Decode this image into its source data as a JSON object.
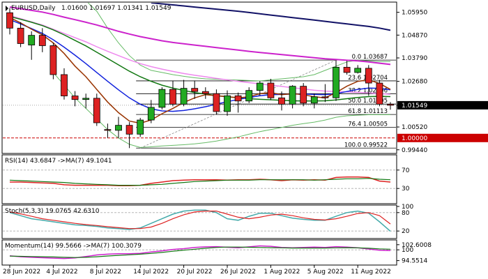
{
  "symbol_title": "EURUSD,Daily",
  "ohlc_text": "1.01600 1.01697 1.01341 1.01549",
  "last_price": "1.01549",
  "parity_label": "1.00000",
  "colors": {
    "bull": "#22aa22",
    "bear": "#dd2222",
    "ma_blue": "#1122dd",
    "ma_green": "#117711",
    "ma_brown": "#993300",
    "ma_magenta": "#cc22cc",
    "ma_pink": "#ee88ee",
    "ma_navy": "#111166",
    "bb": "#66bb66",
    "fib": "#000000",
    "rsi": "#dd2222",
    "rsi_ma": "#117711",
    "stoch": "#44aaaa",
    "stoch_sig": "#dd2222",
    "mom": "#cc22cc",
    "mom_ma": "#117711",
    "parity": "#cc0000"
  },
  "chart_data": [
    {
      "type": "candlestick",
      "title": "EURUSD,Daily",
      "ylim": [
        0.993,
        1.064
      ],
      "y_ticks": [
        "1.05950",
        "1.04870",
        "1.03790",
        "1.02680",
        "1.01549",
        "1.00520",
        "0.99440"
      ],
      "x_ticks": [
        "28 Jun 2022",
        "4 Jul 2022",
        "8 Jul 2022",
        "14 Jul 2022",
        "20 Jul 2022",
        "26 Jul 2022",
        "1 Aug 2022",
        "5 Aug 2022",
        "11 Aug 2022"
      ],
      "x_tick_index": [
        0,
        4,
        8,
        12,
        16,
        20,
        24,
        28,
        32
      ],
      "candles": [
        {
          "o": 1.0593,
          "h": 1.0615,
          "l": 1.049,
          "c": 1.052
        },
        {
          "o": 1.052,
          "h": 1.0548,
          "l": 1.043,
          "c": 1.0447
        },
        {
          "o": 1.044,
          "h": 1.0505,
          "l": 1.037,
          "c": 1.0486
        },
        {
          "o": 1.0486,
          "h": 1.052,
          "l": 1.0406,
          "c": 1.0437
        },
        {
          "o": 1.0437,
          "h": 1.045,
          "l": 1.0278,
          "c": 1.03
        },
        {
          "o": 1.03,
          "h": 1.033,
          "l": 1.0182,
          "c": 1.0199
        },
        {
          "o": 1.0199,
          "h": 1.0222,
          "l": 1.015,
          "c": 1.0182
        },
        {
          "o": 1.0182,
          "h": 1.021,
          "l": 1.014,
          "c": 1.0188
        },
        {
          "o": 1.0188,
          "h": 1.021,
          "l": 1.0057,
          "c": 1.0072
        },
        {
          "o": 1.004,
          "h": 1.0068,
          "l": 1.0,
          "c": 1.0036
        },
        {
          "o": 1.0036,
          "h": 1.01,
          "l": 1.0,
          "c": 1.006
        },
        {
          "o": 1.006,
          "h": 1.0075,
          "l": 0.9952,
          "c": 1.0018
        },
        {
          "o": 1.0018,
          "h": 1.0095,
          "l": 1.0005,
          "c": 1.0085
        },
        {
          "o": 1.0085,
          "h": 1.018,
          "l": 1.007,
          "c": 1.0145
        },
        {
          "o": 1.0145,
          "h": 1.024,
          "l": 1.0135,
          "c": 1.023
        },
        {
          "o": 1.023,
          "h": 1.027,
          "l": 1.015,
          "c": 1.016
        },
        {
          "o": 1.016,
          "h": 1.0275,
          "l": 1.015,
          "c": 1.0235
        },
        {
          "o": 1.0235,
          "h": 1.0272,
          "l": 1.0185,
          "c": 1.022
        },
        {
          "o": 1.022,
          "h": 1.024,
          "l": 1.0185,
          "c": 1.021
        },
        {
          "o": 1.021,
          "h": 1.023,
          "l": 1.011,
          "c": 1.0125
        },
        {
          "o": 1.0125,
          "h": 1.0225,
          "l": 1.0105,
          "c": 1.02
        },
        {
          "o": 1.02,
          "h": 1.0215,
          "l": 1.012,
          "c": 1.0175
        },
        {
          "o": 1.0175,
          "h": 1.024,
          "l": 1.0165,
          "c": 1.0225
        },
        {
          "o": 1.0225,
          "h": 1.027,
          "l": 1.02,
          "c": 1.026
        },
        {
          "o": 1.026,
          "h": 1.028,
          "l": 1.018,
          "c": 1.019
        },
        {
          "o": 1.019,
          "h": 1.022,
          "l": 1.013,
          "c": 1.016
        },
        {
          "o": 1.016,
          "h": 1.025,
          "l": 1.014,
          "c": 1.0245
        },
        {
          "o": 1.0245,
          "h": 1.026,
          "l": 1.015,
          "c": 1.0165
        },
        {
          "o": 1.0165,
          "h": 1.021,
          "l": 1.014,
          "c": 1.0195
        },
        {
          "o": 1.0195,
          "h": 1.0255,
          "l": 1.017,
          "c": 1.019
        },
        {
          "o": 1.019,
          "h": 1.0368,
          "l": 1.0175,
          "c": 1.0335
        },
        {
          "o": 1.0335,
          "h": 1.0365,
          "l": 1.03,
          "c": 1.031
        },
        {
          "o": 1.031,
          "h": 1.0345,
          "l": 1.0305,
          "c": 1.033
        },
        {
          "o": 1.033,
          "h": 1.0345,
          "l": 1.02,
          "c": 1.026
        },
        {
          "o": 1.026,
          "h": 1.0275,
          "l": 1.015,
          "c": 1.016
        },
        {
          "o": 1.016,
          "h": 1.017,
          "l": 1.0134,
          "c": 1.0155
        }
      ],
      "moving_averages": [
        {
          "color_key": "ma_navy",
          "values": [
            null,
            null,
            null,
            null,
            null,
            null,
            null,
            null,
            null,
            null,
            null,
            null,
            null,
            1.064,
            1.0635,
            1.063,
            1.0625,
            1.062,
            1.0615,
            1.061,
            1.0605,
            1.06,
            1.0594,
            1.0588,
            1.0582,
            1.0576,
            1.057,
            1.0564,
            1.0558,
            1.0552,
            1.0546,
            1.054,
            1.0534,
            1.0528,
            1.052,
            1.051
          ]
        },
        {
          "color_key": "ma_magenta",
          "values": [
            1.062,
            1.0612,
            1.0604,
            1.0596,
            1.0585,
            1.0572,
            1.056,
            1.0548,
            1.0535,
            1.052,
            1.0505,
            1.0492,
            1.048,
            1.047,
            1.046,
            1.0452,
            1.0446,
            1.044,
            1.0434,
            1.0428,
            1.0422,
            1.0416,
            1.041,
            1.0405,
            1.04,
            1.0395,
            1.039,
            1.0385,
            1.038,
            1.0375,
            1.0372,
            1.0368,
            1.0365,
            1.036,
            1.0354,
            1.0348
          ]
        },
        {
          "color_key": "ma_pink",
          "values": [
            1.058,
            1.0565,
            1.055,
            1.0535,
            1.0515,
            1.0495,
            1.0475,
            1.0455,
            1.0432,
            1.041,
            1.039,
            1.037,
            1.0352,
            1.0338,
            1.0326,
            1.0315,
            1.0305,
            1.0297,
            1.029,
            1.0282,
            1.0275,
            1.0268,
            1.0262,
            1.0256,
            1.025,
            1.0244,
            1.0238,
            1.0232,
            1.0226,
            1.0222,
            1.022,
            1.0218,
            1.0216,
            1.0213,
            1.021,
            1.0207
          ]
        },
        {
          "color_key": "ma_green",
          "values": [
            1.0575,
            1.0562,
            1.0548,
            1.0532,
            1.0512,
            1.0488,
            1.0462,
            1.0436,
            1.0406,
            1.0376,
            1.0346,
            1.0316,
            1.029,
            1.0268,
            1.025,
            1.0236,
            1.0225,
            1.0215,
            1.0208,
            1.02,
            1.0195,
            1.019,
            1.0186,
            1.0183,
            1.0181,
            1.0178,
            1.0176,
            1.0175,
            1.0175,
            1.0176,
            1.018,
            1.0186,
            1.0192,
            1.0196,
            1.0197,
            1.0196
          ]
        },
        {
          "color_key": "ma_blue",
          "values": [
            1.056,
            1.054,
            1.0518,
            1.0495,
            1.0465,
            1.043,
            1.0392,
            1.0352,
            1.031,
            1.0268,
            1.0228,
            1.019,
            1.016,
            1.0138,
            1.0128,
            1.0126,
            1.013,
            1.0138,
            1.0148,
            1.016,
            1.0172,
            1.0182,
            1.0192,
            1.02,
            1.0205,
            1.0206,
            1.0208,
            1.0208,
            1.0206,
            1.0205,
            1.021,
            1.022,
            1.023,
            1.0236,
            1.0235,
            1.0228
          ]
        },
        {
          "color_key": "ma_brown",
          "values": [
            1.057,
            1.0545,
            1.0515,
            1.0488,
            1.045,
            1.04,
            1.034,
            1.029,
            1.023,
            1.017,
            1.012,
            1.008,
            1.007,
            1.0085,
            1.0115,
            1.014,
            1.0168,
            1.019,
            1.0205,
            1.02,
            1.0196,
            1.019,
            1.0195,
            1.021,
            1.0215,
            1.0205,
            1.021,
            1.0205,
            1.0195,
            1.019,
            1.0215,
            1.0245,
            1.0268,
            1.0275,
            1.0258,
            1.023
          ]
        }
      ],
      "bollinger": {
        "upper": [
          null,
          null,
          null,
          null,
          1.066,
          1.066,
          1.066,
          1.065,
          1.06,
          1.052,
          1.045,
          1.039,
          1.0345,
          1.032,
          1.031,
          1.03,
          1.0292,
          1.0285,
          1.028,
          1.0278,
          1.0276,
          1.0274,
          1.0272,
          1.027,
          1.0275,
          1.028,
          1.0285,
          1.029,
          1.03,
          1.032,
          1.034,
          1.036,
          1.0368,
          1.0365,
          1.0362,
          1.0362
        ],
        "lower": [
          null,
          null,
          null,
          null,
          1.031,
          1.025,
          1.019,
          1.014,
          1.009,
          1.004,
          1.0,
          0.997,
          0.9955,
          0.9958,
          0.9962,
          0.9965,
          0.9968,
          0.9972,
          0.9978,
          0.9985,
          0.9995,
          1.0005,
          1.0018,
          1.003,
          1.004,
          1.005,
          1.006,
          1.0068,
          1.0075,
          1.0085,
          1.0098,
          1.0105,
          1.0108,
          1.011,
          1.011,
          1.011
        ]
      },
      "fib_levels": [
        {
          "label": "0.0 1.03687",
          "value": 1.03687
        },
        {
          "label": "23.6 1.02704",
          "value": 1.02704
        },
        {
          "label": "38.2 1.02096",
          "value": 1.02096
        },
        {
          "label": "50.0 1.01605",
          "value": 1.01605
        },
        {
          "label": "61.8 1.01113",
          "value": 1.01113
        },
        {
          "label": "76.4 1.00505",
          "value": 1.00505
        },
        {
          "label": "100.0 0.99522",
          "value": 0.99522
        }
      ],
      "parity": 1.0,
      "current_price": 1.01549
    },
    {
      "type": "line",
      "title": "RSI(14) 43.6847  ->MA(7) 49.1041",
      "ylim": [
        0,
        100
      ],
      "y_ticks": [
        "70",
        "30"
      ],
      "y_tick_values": [
        70,
        30
      ],
      "series": [
        {
          "color_key": "rsi",
          "values": [
            44,
            44,
            43,
            42,
            41,
            38,
            37,
            37,
            37,
            37,
            36,
            36,
            37,
            41,
            44,
            47,
            48,
            49,
            49,
            49,
            48,
            49,
            49,
            50,
            49,
            47,
            49,
            48,
            49,
            48,
            54,
            55,
            55,
            54,
            46,
            44
          ]
        },
        {
          "color_key": "rsi_ma",
          "values": [
            48,
            47,
            46,
            45,
            44,
            43,
            41,
            40,
            39,
            38,
            37,
            37,
            37,
            38,
            39,
            41,
            43,
            45,
            46,
            47,
            48,
            48,
            48,
            49,
            49,
            49,
            49,
            49,
            48,
            49,
            50,
            51,
            51,
            52,
            50,
            49
          ]
        }
      ]
    },
    {
      "type": "line",
      "title": "Stoch(5,3,3) 19.0765 42.6310",
      "ylim": [
        0,
        100
      ],
      "y_ticks": [
        "100",
        "80",
        "20"
      ],
      "y_tick_values": [
        100,
        80,
        20
      ],
      "series": [
        {
          "color_key": "stoch",
          "values": [
            80,
            70,
            60,
            55,
            50,
            45,
            40,
            38,
            35,
            30,
            28,
            25,
            30,
            45,
            60,
            75,
            85,
            88,
            88,
            80,
            60,
            55,
            68,
            78,
            78,
            70,
            62,
            58,
            55,
            55,
            68,
            80,
            85,
            78,
            50,
            19
          ]
        },
        {
          "color_key": "stoch_sig",
          "values": [
            82,
            76,
            68,
            60,
            55,
            50,
            45,
            41,
            38,
            34,
            31,
            28,
            28,
            33,
            45,
            60,
            73,
            82,
            85,
            85,
            75,
            65,
            60,
            65,
            72,
            75,
            70,
            63,
            58,
            56,
            60,
            68,
            77,
            80,
            70,
            43
          ]
        }
      ]
    },
    {
      "type": "line",
      "title": "Momentum(14) 99.5666  ->MA(7) 100.3079",
      "ylim": [
        93.0,
        104.3
      ],
      "y_ticks": [
        "102.6008",
        "100",
        "94.5514"
      ],
      "y_tick_values": [
        102.6008,
        100,
        94.5514
      ],
      "series": [
        {
          "color_key": "mom",
          "values": [
            97.0,
            96.5,
            96.2,
            96.0,
            95.8,
            95.6,
            95.9,
            96.6,
            97.4,
            97.8,
            98.0,
            98.0,
            98.2,
            98.9,
            99.5,
            100.2,
            100.6,
            101.2,
            101.5,
            101.6,
            101.3,
            101.0,
            101.5,
            102.0,
            101.8,
            101.2,
            101.0,
            101.2,
            101.4,
            101.2,
            101.6,
            101.4,
            101.0,
            100.4,
            99.8,
            99.6
          ]
        },
        {
          "color_key": "mom_ma",
          "values": [
            96.8,
            96.7,
            96.6,
            96.5,
            96.4,
            96.2,
            96.1,
            96.2,
            96.5,
            96.9,
            97.2,
            97.5,
            97.8,
            98.2,
            98.7,
            99.3,
            99.8,
            100.3,
            100.8,
            101.2,
            101.4,
            101.4,
            101.3,
            101.2,
            101.1,
            101.0,
            100.9,
            100.9,
            100.9,
            100.9,
            101.0,
            101.1,
            101.0,
            100.8,
            100.5,
            100.3
          ]
        }
      ]
    }
  ]
}
